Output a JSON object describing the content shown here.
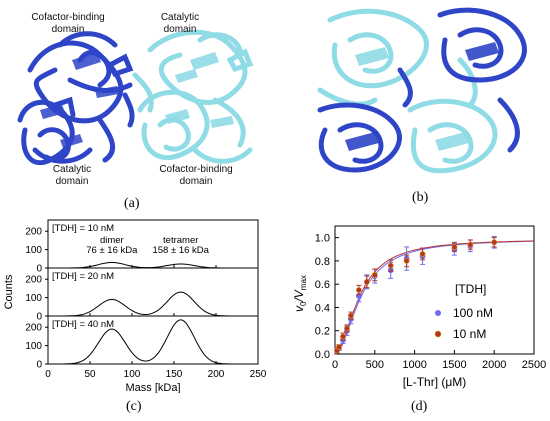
{
  "panel_a": {
    "label": "(a)",
    "annotations": [
      {
        "text_lines": [
          "Cofactor-binding",
          "domain"
        ]
      },
      {
        "text_lines": [
          "Catalytic",
          "domain"
        ]
      },
      {
        "text_lines": [
          "Catalytic",
          "domain"
        ]
      },
      {
        "text_lines": [
          "Cofactor-binding",
          "domain"
        ]
      }
    ],
    "colors": {
      "dark_blue": "#2f45c8",
      "cyan": "#8fdbe6"
    }
  },
  "panel_b": {
    "label": "(b)",
    "colors": {
      "dark_blue": "#2f45c8",
      "cyan": "#8fdbe6"
    }
  },
  "panel_c": {
    "label": "(c)",
    "ylabel": "Counts",
    "xlabel": "Mass [kDa]",
    "xticks": [
      "0",
      "50",
      "100",
      "150",
      "200",
      "250"
    ],
    "yticks": [
      "0",
      "100",
      "200"
    ],
    "subplots": [
      {
        "label": "[TDH] = 10 nM",
        "peak1_label": [
          "dimer",
          "76 ± 16 kDa"
        ],
        "peak2_label": [
          "tetramer",
          "158 ± 16 kDa"
        ]
      },
      {
        "label": "[TDH] = 20 nM"
      },
      {
        "label": "[TDH] = 40 nM"
      }
    ]
  },
  "panel_d": {
    "label": "(d)",
    "xlabel": "[L-Thr] (μM)",
    "ylabel_main": "v",
    "ylabel_sub0": "0",
    "ylabel_slash": "/V",
    "ylabel_submax": "max",
    "xticks": [
      "0",
      "500",
      "1000",
      "1500",
      "2000",
      "2500"
    ],
    "yticks": [
      "0.0",
      "0.2",
      "0.4",
      "0.6",
      "0.8",
      "1.0"
    ],
    "legend_title": "[TDH]",
    "legend_items": [
      "100 nM",
      "10 nM"
    ]
  },
  "chart_data": [
    {
      "type": "line",
      "title": "",
      "xlabel": "Mass [kDa]",
      "ylabel": "Counts",
      "xlim": [
        0,
        250
      ],
      "ylim": [
        0,
        250
      ],
      "series": [
        {
          "name": "[TDH] = 10 nM",
          "peaks": [
            {
              "x": 76,
              "height": 30
            },
            {
              "x": 158,
              "height": 22
            }
          ]
        },
        {
          "name": "[TDH] = 20 nM",
          "peaks": [
            {
              "x": 76,
              "height": 90
            },
            {
              "x": 158,
              "height": 130
            }
          ]
        },
        {
          "name": "[TDH] = 40 nM",
          "peaks": [
            {
              "x": 76,
              "height": 190
            },
            {
              "x": 158,
              "height": 240
            }
          ]
        }
      ]
    },
    {
      "type": "scatter",
      "title": "",
      "xlabel": "[L-Thr] (μM)",
      "ylabel": "v0/Vmax",
      "xlim": [
        0,
        2500
      ],
      "ylim": [
        0,
        1.1
      ],
      "series": [
        {
          "name": "100 nM",
          "color": "#6b6cf0",
          "x": [
            25,
            50,
            100,
            150,
            200,
            300,
            400,
            500,
            700,
            900,
            1100,
            1500,
            1700,
            2000
          ],
          "y": [
            0.03,
            0.05,
            0.12,
            0.2,
            0.3,
            0.5,
            0.62,
            0.67,
            0.72,
            0.82,
            0.84,
            0.9,
            0.93,
            0.96
          ],
          "err": [
            0.02,
            0.02,
            0.03,
            0.04,
            0.04,
            0.05,
            0.06,
            0.06,
            0.07,
            0.1,
            0.07,
            0.05,
            0.05,
            0.05
          ]
        },
        {
          "name": "10 nM",
          "color": "#b5332e",
          "x": [
            25,
            50,
            100,
            150,
            200,
            300,
            400,
            500,
            700,
            900,
            1100,
            1500,
            1700,
            2000
          ],
          "y": [
            0.03,
            0.06,
            0.15,
            0.22,
            0.33,
            0.55,
            0.62,
            0.68,
            0.76,
            0.8,
            0.86,
            0.92,
            0.94,
            0.96
          ],
          "err": [
            0.02,
            0.02,
            0.03,
            0.03,
            0.03,
            0.04,
            0.05,
            0.05,
            0.05,
            0.05,
            0.05,
            0.04,
            0.04,
            0.04
          ]
        }
      ]
    }
  ]
}
